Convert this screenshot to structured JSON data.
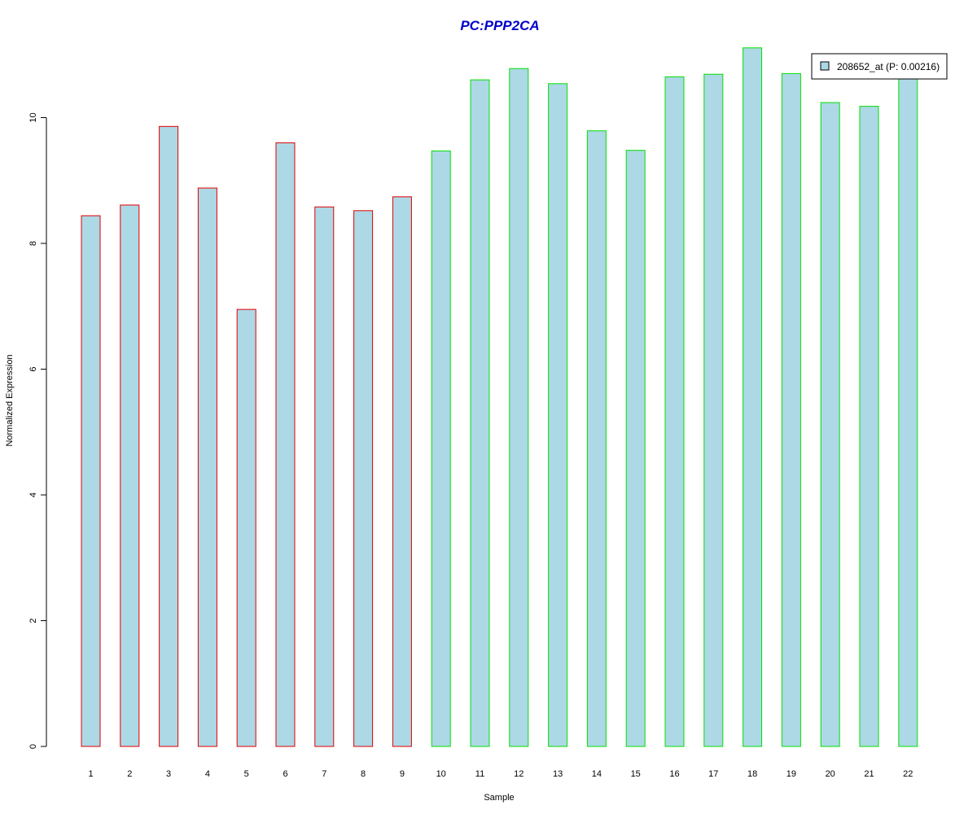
{
  "chart_data": {
    "type": "bar",
    "title": "PC:PPP2CA",
    "xlabel": "Sample",
    "ylabel": "Normalized Expression",
    "ylim": [
      0,
      11.2
    ],
    "yticks": [
      0,
      2,
      4,
      6,
      8,
      10
    ],
    "grid": false,
    "legend_position": "top-right",
    "categories": [
      "1",
      "2",
      "3",
      "4",
      "5",
      "6",
      "7",
      "8",
      "9",
      "10",
      "11",
      "12",
      "13",
      "14",
      "15",
      "16",
      "17",
      "18",
      "19",
      "20",
      "21",
      "22"
    ],
    "series": [
      {
        "name": "208652_at (P: 0.00216)",
        "values": [
          8.44,
          8.61,
          9.86,
          8.88,
          6.95,
          9.6,
          8.58,
          8.52,
          8.74,
          9.47,
          10.6,
          10.78,
          10.54,
          9.79,
          9.48,
          10.65,
          10.69,
          11.11,
          10.7,
          10.24,
          10.18,
          10.65
        ]
      }
    ],
    "groups": [
      {
        "samples": "1-9",
        "border_color": "#e00000"
      },
      {
        "samples": "10-22",
        "border_color": "#00e000"
      }
    ],
    "colors": {
      "title": "#0000cc",
      "bar_fill": "#add8e6",
      "group1_border": "#e00000",
      "group2_border": "#00e000"
    }
  }
}
